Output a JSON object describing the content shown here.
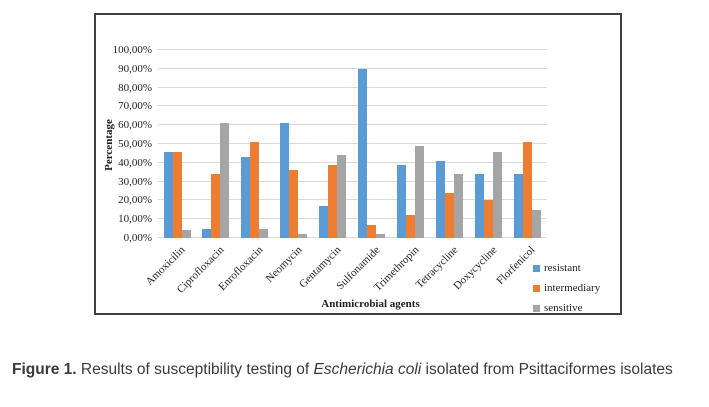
{
  "figure_caption": {
    "label": "Figure 1.",
    "before_italic": "Results of susceptibility testing of",
    "italic": "Escherichia coli",
    "after_italic": "isolated from Psittaciformes isolates"
  },
  "chart_data": {
    "type": "bar",
    "title": "",
    "xlabel": "Antimicrobial agents",
    "ylabel": "Percentage",
    "categories": [
      "Amoxicilin",
      "Ciprofloxacin",
      "Enrofloxacin",
      "Neomycin",
      "Gentamycin",
      "Sulfonamide",
      "Trimethropin",
      "Tetracycline",
      "Doxycycline",
      "Florfenicol"
    ],
    "series": [
      {
        "name": "resistant",
        "color": "#5B9BD5",
        "values": [
          46,
          5,
          43,
          61,
          17,
          90,
          39,
          41,
          34,
          34
        ]
      },
      {
        "name": "intermediary",
        "color": "#ED7D31",
        "values": [
          46,
          34,
          51,
          36,
          39,
          7,
          12,
          24,
          20,
          51
        ]
      },
      {
        "name": "sensitive",
        "color": "#A5A5A5",
        "values": [
          4,
          61,
          5,
          2,
          44,
          2,
          49,
          34,
          46,
          15
        ]
      }
    ],
    "ylim": [
      0,
      100
    ],
    "y_ticks": [
      "0,00%",
      "10,00%",
      "20,00%",
      "30,00%",
      "40,00%",
      "50,00%",
      "60,00%",
      "70,00%",
      "80,00%",
      "90,00%",
      "100,00%"
    ],
    "grid": true,
    "legend_position": "right"
  },
  "colors": {
    "grid_line": "#d9d9d9",
    "box_border": "#3f3f3f",
    "chart_text": "#1f1f1f",
    "caption_text": "#3a3a3a"
  }
}
